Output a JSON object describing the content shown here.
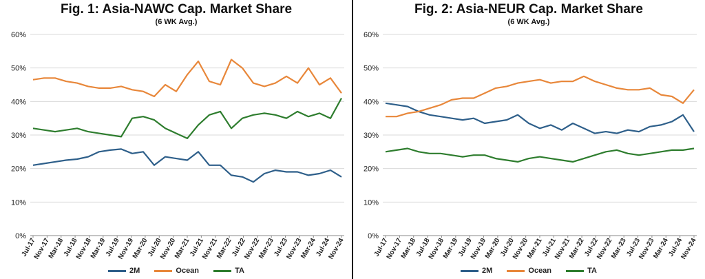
{
  "chart_data": [
    {
      "type": "line",
      "title": "Fig. 1: Asia-NAWC Cap. Market Share",
      "subtitle": "(6 WK Avg.)",
      "y_ticks": [
        "0%",
        "10%",
        "20%",
        "30%",
        "40%",
        "50%",
        "60%"
      ],
      "ylim": [
        0,
        60
      ],
      "x_ticks": [
        "Jul-17",
        "Nov-17",
        "Mar-18",
        "Jul-18",
        "Nov-18",
        "Mar-19",
        "Jul-19",
        "Nov-19",
        "Mar-20",
        "Jul-20",
        "Nov-20",
        "Mar-21",
        "Jul-21",
        "Nov-21",
        "Mar-22",
        "Jul-22",
        "Nov-22",
        "Mar-23",
        "Jul-23",
        "Nov-23",
        "Mar-24",
        "Jul-24",
        "Nov-24"
      ],
      "grid": true,
      "legend_position": "bottom",
      "series": [
        {
          "name": "2M",
          "color": "#2E5F8A",
          "values": [
            21.0,
            21.5,
            22.0,
            22.5,
            22.8,
            23.5,
            25.0,
            25.5,
            25.8,
            24.5,
            25.0,
            21.0,
            23.5,
            23.0,
            22.5,
            25.0,
            21.0,
            21.0,
            18.0,
            17.5,
            16.0,
            18.5,
            19.5,
            19.0,
            19.0,
            18.0,
            18.5,
            19.5,
            17.5
          ]
        },
        {
          "name": "Ocean",
          "color": "#E8873A",
          "values": [
            46.5,
            47.0,
            47.0,
            46.0,
            45.5,
            44.5,
            44.0,
            44.0,
            44.5,
            43.5,
            43.0,
            41.5,
            45.0,
            43.0,
            48.0,
            52.0,
            46.0,
            45.0,
            52.5,
            50.0,
            45.5,
            44.5,
            45.5,
            47.5,
            45.5,
            50.0,
            45.0,
            47.0,
            42.5
          ]
        },
        {
          "name": "TA",
          "color": "#2E7D2E",
          "values": [
            32.0,
            31.5,
            31.0,
            31.5,
            32.0,
            31.0,
            30.5,
            30.0,
            29.5,
            35.0,
            35.5,
            34.5,
            32.0,
            30.5,
            29.0,
            33.0,
            36.0,
            37.0,
            32.0,
            35.0,
            36.0,
            36.5,
            36.0,
            35.0,
            37.0,
            35.5,
            36.5,
            35.0,
            41.0
          ]
        }
      ]
    },
    {
      "type": "line",
      "title": "Fig. 2: Asia-NEUR Cap. Market Share",
      "subtitle": "(6 WK Avg.)",
      "y_ticks": [
        "0%",
        "10%",
        "20%",
        "30%",
        "40%",
        "50%",
        "60%"
      ],
      "ylim": [
        0,
        60
      ],
      "x_ticks": [
        "Jul-17",
        "Nov-17",
        "Mar-18",
        "Jul-18",
        "Nov-18",
        "Mar-19",
        "Jul-19",
        "Nov-19",
        "Mar-20",
        "Jul-20",
        "Nov-20",
        "Mar-21",
        "Jul-21",
        "Nov-21",
        "Mar-22",
        "Jul-22",
        "Nov-22",
        "Mar-23",
        "Jul-23",
        "Nov-23",
        "Mar-24",
        "Jul-24",
        "Nov-24"
      ],
      "grid": true,
      "legend_position": "bottom",
      "series": [
        {
          "name": "2M",
          "color": "#2E5F8A",
          "values": [
            39.5,
            39.0,
            38.5,
            37.0,
            36.0,
            35.5,
            35.0,
            34.5,
            35.0,
            33.5,
            34.0,
            34.5,
            36.0,
            33.5,
            32.0,
            33.0,
            31.5,
            33.5,
            32.0,
            30.5,
            31.0,
            30.5,
            31.5,
            31.0,
            32.5,
            33.0,
            34.0,
            36.0,
            31.0
          ]
        },
        {
          "name": "Ocean",
          "color": "#E8873A",
          "values": [
            35.5,
            35.5,
            36.5,
            37.0,
            38.0,
            39.0,
            40.5,
            41.0,
            41.0,
            42.5,
            44.0,
            44.5,
            45.5,
            46.0,
            46.5,
            45.5,
            46.0,
            46.0,
            47.5,
            46.0,
            45.0,
            44.0,
            43.5,
            43.5,
            44.0,
            42.0,
            41.5,
            39.5,
            43.5
          ]
        },
        {
          "name": "TA",
          "color": "#2E7D2E",
          "values": [
            25.0,
            25.5,
            26.0,
            25.0,
            24.5,
            24.5,
            24.0,
            23.5,
            24.0,
            24.0,
            23.0,
            22.5,
            22.0,
            23.0,
            23.5,
            23.0,
            22.5,
            22.0,
            23.0,
            24.0,
            25.0,
            25.5,
            24.5,
            24.0,
            24.5,
            25.0,
            25.5,
            25.5,
            26.0
          ]
        }
      ]
    }
  ]
}
